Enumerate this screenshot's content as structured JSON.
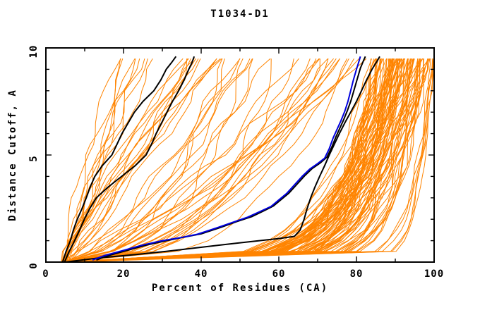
{
  "chart_data": {
    "type": "line",
    "title": "T1034-D1",
    "xlabel": "Percent of Residues (CA)",
    "ylabel": "Distance Cutoff, A",
    "xlim": [
      0,
      100
    ],
    "ylim": [
      0,
      10
    ],
    "x_major_ticks": [
      0,
      20,
      40,
      60,
      80,
      100
    ],
    "x_minor_step": 10,
    "y_major_ticks": [
      0,
      5,
      10
    ],
    "y_minor_step": 1,
    "grid": false,
    "legend": "none",
    "background": "#ffffff",
    "axis_color": "#000000",
    "colors": {
      "ensemble": "#ff8400",
      "highlight": "#0000dd",
      "reference": "#000000"
    },
    "series": [
      {
        "name": "reference-left-1",
        "color": "#000000",
        "width": 2,
        "points": [
          [
            4.3,
            0
          ],
          [
            5.2,
            0.5
          ],
          [
            6.3,
            1
          ],
          [
            7.1,
            1.5
          ],
          [
            8.1,
            2
          ],
          [
            9.3,
            2.5
          ],
          [
            10.4,
            3
          ],
          [
            11.4,
            3.5
          ],
          [
            12.6,
            4
          ],
          [
            14.5,
            4.5
          ],
          [
            17,
            5
          ],
          [
            18.3,
            5.5
          ],
          [
            19.6,
            6
          ],
          [
            21.2,
            6.5
          ],
          [
            22.8,
            7
          ],
          [
            25,
            7.5
          ],
          [
            27.8,
            8
          ],
          [
            29.6,
            8.5
          ],
          [
            31,
            9
          ],
          [
            32.3,
            9.3
          ],
          [
            33.5,
            9.6
          ]
        ]
      },
      {
        "name": "reference-left-2",
        "color": "#000000",
        "width": 2,
        "points": [
          [
            4.8,
            0
          ],
          [
            6,
            0.5
          ],
          [
            7.4,
            1
          ],
          [
            8.7,
            1.5
          ],
          [
            9.9,
            2
          ],
          [
            11.3,
            2.5
          ],
          [
            13,
            3
          ],
          [
            16,
            3.5
          ],
          [
            19.5,
            4
          ],
          [
            23,
            4.5
          ],
          [
            25.8,
            5
          ],
          [
            27.2,
            5.5
          ],
          [
            28.4,
            6
          ],
          [
            29.8,
            6.5
          ],
          [
            31.2,
            7
          ],
          [
            32.6,
            7.5
          ],
          [
            34.2,
            8
          ],
          [
            35.6,
            8.5
          ],
          [
            36.8,
            9
          ],
          [
            37.6,
            9.3
          ],
          [
            38.2,
            9.6
          ]
        ]
      },
      {
        "name": "reference-right",
        "color": "#000000",
        "width": 2,
        "points": [
          [
            5,
            0
          ],
          [
            14,
            0.2
          ],
          [
            23,
            0.35
          ],
          [
            31,
            0.5
          ],
          [
            38,
            0.65
          ],
          [
            45,
            0.8
          ],
          [
            50,
            0.9
          ],
          [
            55,
            1.0
          ],
          [
            60,
            1.1
          ],
          [
            64,
            1.2
          ],
          [
            65.5,
            1.5
          ],
          [
            66.5,
            2.0
          ],
          [
            67.3,
            2.5
          ],
          [
            68.2,
            3.0
          ],
          [
            69.3,
            3.5
          ],
          [
            70.5,
            4.0
          ],
          [
            71.8,
            4.5
          ],
          [
            73,
            5.0
          ],
          [
            74.3,
            5.5
          ],
          [
            75.6,
            6.0
          ],
          [
            77,
            6.5
          ],
          [
            78.5,
            7.0
          ],
          [
            80,
            7.5
          ],
          [
            81.3,
            8.0
          ],
          [
            82.6,
            8.5
          ],
          [
            84,
            9.0
          ],
          [
            85.2,
            9.35
          ],
          [
            86,
            9.6
          ]
        ]
      },
      {
        "name": "companion-black",
        "color": "#000000",
        "width": 2,
        "points": [
          [
            13,
            0.1
          ],
          [
            16,
            0.3
          ],
          [
            21,
            0.55
          ],
          [
            26,
            0.8
          ],
          [
            31,
            1.0
          ],
          [
            36,
            1.18
          ],
          [
            40,
            1.32
          ],
          [
            45,
            1.62
          ],
          [
            49,
            1.88
          ],
          [
            53,
            2.12
          ],
          [
            56,
            2.38
          ],
          [
            58.6,
            2.62
          ],
          [
            60.6,
            2.92
          ],
          [
            62.6,
            3.22
          ],
          [
            64.6,
            3.62
          ],
          [
            66.6,
            4.02
          ],
          [
            68.6,
            4.37
          ],
          [
            70.6,
            4.62
          ],
          [
            72.4,
            4.9
          ],
          [
            73.6,
            5.35
          ],
          [
            74.7,
            5.85
          ],
          [
            75.7,
            6.25
          ],
          [
            76.7,
            6.65
          ],
          [
            77.7,
            7.1
          ],
          [
            78.6,
            7.55
          ],
          [
            79.4,
            8.05
          ],
          [
            80.2,
            8.55
          ],
          [
            81,
            9.05
          ],
          [
            81.8,
            9.4
          ],
          [
            82.3,
            9.6
          ]
        ]
      },
      {
        "name": "best-model-blue",
        "color": "#0000dd",
        "width": 2,
        "points": [
          [
            12,
            0.1
          ],
          [
            15,
            0.3
          ],
          [
            20,
            0.55
          ],
          [
            25,
            0.8
          ],
          [
            30,
            1.0
          ],
          [
            35,
            1.15
          ],
          [
            39,
            1.3
          ],
          [
            44,
            1.6
          ],
          [
            48,
            1.85
          ],
          [
            52,
            2.1
          ],
          [
            55,
            2.35
          ],
          [
            58,
            2.6
          ],
          [
            60,
            2.9
          ],
          [
            62,
            3.2
          ],
          [
            64,
            3.6
          ],
          [
            66,
            4.0
          ],
          [
            68,
            4.35
          ],
          [
            70,
            4.6
          ],
          [
            71.8,
            4.85
          ],
          [
            73,
            5.3
          ],
          [
            74,
            5.8
          ],
          [
            75,
            6.2
          ],
          [
            76,
            6.6
          ],
          [
            77,
            7.05
          ],
          [
            77.8,
            7.5
          ],
          [
            78.5,
            8.0
          ],
          [
            79.2,
            8.5
          ],
          [
            80,
            9.0
          ],
          [
            80.6,
            9.35
          ],
          [
            81,
            9.6
          ]
        ]
      }
    ],
    "ensemble": {
      "color": "#ff8400",
      "seed": 20341,
      "x_start_range": [
        3.8,
        6.2
      ],
      "y_step": 0.5,
      "y_top": 9.6,
      "groups": [
        {
          "label": "poor-models",
          "count": 22,
          "x_final": [
            19,
            46
          ],
          "shape_exp": [
            0.8,
            1.5
          ],
          "wiggle": [
            0.5,
            1.3
          ]
        },
        {
          "label": "mid-models",
          "count": 28,
          "x_final": [
            46,
            84
          ],
          "shape_exp": [
            0.32,
            0.85
          ],
          "wiggle": [
            0.6,
            1.6
          ]
        },
        {
          "label": "good-models",
          "count": 96,
          "x_final": [
            84,
            98.5
          ],
          "shape_exp": [
            0.06,
            0.2
          ],
          "wiggle": [
            0.4,
            1.1
          ]
        },
        {
          "label": "near-complete-models",
          "count": 6,
          "x_final": [
            99,
            100.2
          ],
          "shape_exp": [
            0.035,
            0.06
          ],
          "wiggle": [
            0.15,
            0.5
          ]
        }
      ]
    }
  }
}
